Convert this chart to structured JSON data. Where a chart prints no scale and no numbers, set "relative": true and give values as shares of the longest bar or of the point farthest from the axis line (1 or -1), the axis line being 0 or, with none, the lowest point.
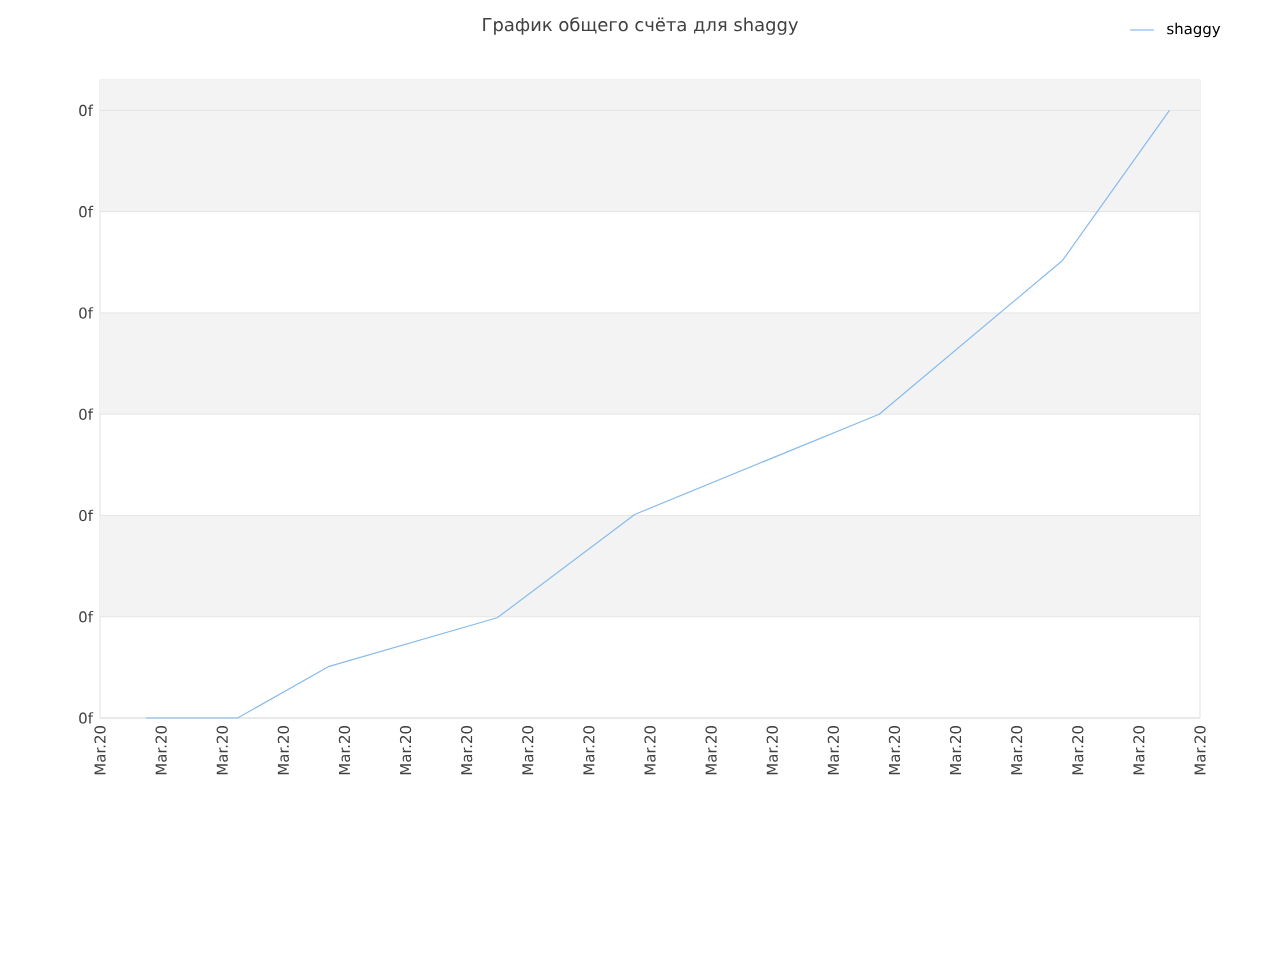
{
  "chart_data": {
    "type": "line",
    "title": "График общего счёта для shaggy",
    "relative": true,
    "categories": [
      "Mar.20",
      null,
      null,
      null,
      "Mar.20",
      null,
      null,
      null,
      "Mar.20",
      null,
      null,
      null,
      "Mar.20",
      null,
      null,
      null,
      "Mar.20",
      null,
      null,
      null,
      "Mar.20",
      null,
      null,
      null,
      "Mar.20",
      null,
      null,
      null,
      "Mar.20",
      null,
      null,
      null,
      "Mar.20",
      null,
      null,
      null,
      "Mar.20",
      null,
      null,
      null,
      "Mar.20",
      null,
      null,
      null,
      "Mar.20",
      null,
      null,
      null,
      "Mar.20",
      null,
      null,
      null,
      "Mar.20",
      null,
      null,
      null,
      "Mar.20",
      null,
      null,
      null,
      "Mar.20",
      null,
      null,
      null,
      "Mar.20",
      null,
      null,
      null,
      "Mar.20",
      null,
      null,
      null,
      "Mar.20"
    ],
    "series": [
      {
        "name": "shaggy",
        "color": "#88bbee",
        "values": [
          null,
          null,
          null,
          0,
          null,
          null,
          null,
          null,
          null,
          0,
          null,
          null,
          null,
          null,
          null,
          0.085,
          null,
          null,
          null,
          null,
          null,
          null,
          null,
          null,
          null,
          null,
          0.165,
          null,
          null,
          null,
          null,
          null,
          null,
          null,
          null,
          0.335,
          null,
          null,
          null,
          null,
          null,
          null,
          null,
          null,
          null,
          null,
          null,
          null,
          null,
          null,
          null,
          0.5,
          null,
          null,
          null,
          null,
          null,
          null,
          null,
          null,
          null,
          null,
          null,
          0.753,
          null,
          null,
          null,
          null,
          null,
          null,
          1,
          null,
          null
        ]
      }
    ],
    "annotations": [
      "0f",
      "0f",
      "0f",
      "0f",
      "0f",
      "0f",
      "0f"
    ],
    "bands": [
      {
        "axis": "y",
        "from": 0.1667,
        "to": 0.3333,
        "color": "#f3f3f3"
      },
      {
        "axis": "y",
        "from": 0.5,
        "to": 0.6667,
        "color": "#f3f3f3"
      },
      {
        "axis": "y",
        "from": 0.8333,
        "to": 1.05,
        "color": "#f3f3f3"
      }
    ],
    "grid": "y",
    "legend": "top right",
    "marker": "none",
    "line_style": "solid"
  }
}
